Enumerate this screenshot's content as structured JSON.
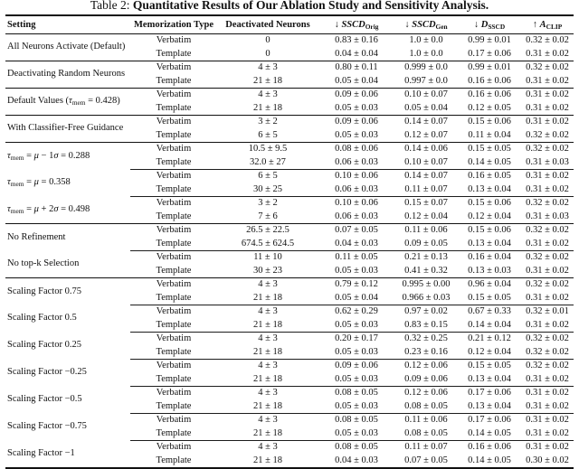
{
  "title": {
    "prefix": "Table 2: ",
    "emph": "Quantitative Results of Our Ablation Study and Sensitivity Analysis."
  },
  "table": {
    "columns": [
      {
        "key": "setting",
        "label_html": "Setting"
      },
      {
        "key": "memorization_type",
        "label_html": "Memorization Type"
      },
      {
        "key": "deactivated_neurons",
        "label_html": "Deactivated Neurons"
      },
      {
        "key": "sscd_orig",
        "label_html": "&#8595; <i>SSCD</i><sub>Orig</sub>"
      },
      {
        "key": "sscd_gen",
        "label_html": "&#8595; <i>SSCD</i><sub>Gen</sub>"
      },
      {
        "key": "d_sscd",
        "label_html": "&#8595; <i>D</i><sub>SSCD</sub>"
      },
      {
        "key": "a_clip",
        "label_html": "&#8593; <i>A</i><sub>CLIP</sub>"
      }
    ],
    "groups": [
      {
        "setting_html": "All Neurons Activate (Default)",
        "rule_after": "full",
        "rows": [
          {
            "memorization_type": "Verbatim",
            "deactivated_neurons": "0",
            "sscd_orig": "0.83 ± 0.16",
            "sscd_gen": "1.0 ± 0.0",
            "d_sscd": "0.99 ± 0.01",
            "a_clip": "0.32 ± 0.02"
          },
          {
            "memorization_type": "Template",
            "deactivated_neurons": "0",
            "sscd_orig": "0.04 ± 0.04",
            "sscd_gen": "1.0 ± 0.0",
            "d_sscd": "0.17 ± 0.06",
            "a_clip": "0.31 ± 0.02"
          }
        ]
      },
      {
        "setting_html": "Deactivating Random Neurons",
        "rule_after": "full",
        "rows": [
          {
            "memorization_type": "Verbatim",
            "deactivated_neurons": "4 ± 3",
            "sscd_orig": "0.80 ± 0.11",
            "sscd_gen": "0.999 ± 0.0",
            "d_sscd": "0.99 ± 0.01",
            "a_clip": "0.32 ± 0.02"
          },
          {
            "memorization_type": "Template",
            "deactivated_neurons": "21 ± 18",
            "sscd_orig": "0.05 ± 0.04",
            "sscd_gen": "0.997 ± 0.0",
            "d_sscd": "0.16 ± 0.06",
            "a_clip": "0.31 ± 0.02"
          }
        ]
      },
      {
        "setting_html": "Default Values (<i>&#964;</i><sub>mem</sub> = 0.428)",
        "rule_after": "full",
        "rows": [
          {
            "memorization_type": "Verbatim",
            "deactivated_neurons": "4 ± 3",
            "sscd_orig": "0.09 ± 0.06",
            "sscd_gen": "0.10 ± 0.07",
            "d_sscd": "0.16 ± 0.06",
            "a_clip": "0.31 ± 0.02"
          },
          {
            "memorization_type": "Template",
            "deactivated_neurons": "21 ± 18",
            "sscd_orig": "0.05 ± 0.03",
            "sscd_gen": "0.05 ± 0.04",
            "d_sscd": "0.12 ± 0.05",
            "a_clip": "0.31 ± 0.02"
          }
        ]
      },
      {
        "setting_html": "With Classifier-Free Guidance",
        "rule_after": "full",
        "rows": [
          {
            "memorization_type": "Verbatim",
            "deactivated_neurons": "3 ± 2",
            "sscd_orig": "0.09 ± 0.06",
            "sscd_gen": "0.14 ± 0.07",
            "d_sscd": "0.15 ± 0.06",
            "a_clip": "0.31 ± 0.02"
          },
          {
            "memorization_type": "Template",
            "deactivated_neurons": "6 ± 5",
            "sscd_orig": "0.05 ± 0.03",
            "sscd_gen": "0.12 ± 0.07",
            "d_sscd": "0.11 ± 0.04",
            "a_clip": "0.32 ± 0.02"
          }
        ]
      },
      {
        "setting_html": "<i>&#964;</i><sub>mem</sub> = <i>&#956;</i> &#8722; 1<i>&#963;</i> = 0.288",
        "rule_after": "partial",
        "rows": [
          {
            "memorization_type": "Verbatim",
            "deactivated_neurons": "10.5 ± 9.5",
            "sscd_orig": "0.08 ± 0.06",
            "sscd_gen": "0.14 ± 0.06",
            "d_sscd": "0.15 ± 0.05",
            "a_clip": "0.32 ± 0.02"
          },
          {
            "memorization_type": "Template",
            "deactivated_neurons": "32.0 ± 27",
            "sscd_orig": "0.06 ± 0.03",
            "sscd_gen": "0.10 ± 0.07",
            "d_sscd": "0.14 ± 0.05",
            "a_clip": "0.31 ± 0.03"
          }
        ]
      },
      {
        "setting_html": "<i>&#964;</i><sub>mem</sub> = <i>&#956;</i> = 0.358",
        "rule_after": "partial",
        "rows": [
          {
            "memorization_type": "Verbatim",
            "deactivated_neurons": "6 ± 5",
            "sscd_orig": "0.10 ± 0.06",
            "sscd_gen": "0.14 ± 0.07",
            "d_sscd": "0.16 ± 0.05",
            "a_clip": "0.31 ± 0.02"
          },
          {
            "memorization_type": "Template",
            "deactivated_neurons": "30 ± 25",
            "sscd_orig": "0.06 ± 0.03",
            "sscd_gen": "0.11 ± 0.07",
            "d_sscd": "0.13 ± 0.04",
            "a_clip": "0.31 ± 0.02"
          }
        ]
      },
      {
        "setting_html": "<i>&#964;</i><sub>mem</sub> = <i>&#956;</i> + 2<i>&#963;</i> = 0.498",
        "rule_after": "full",
        "rows": [
          {
            "memorization_type": "Verbatim",
            "deactivated_neurons": "3 ± 2",
            "sscd_orig": "0.10 ± 0.06",
            "sscd_gen": "0.15 ± 0.07",
            "d_sscd": "0.15 ± 0.06",
            "a_clip": "0.32 ± 0.02"
          },
          {
            "memorization_type": "Template",
            "deactivated_neurons": "7 ± 6",
            "sscd_orig": "0.06 ± 0.03",
            "sscd_gen": "0.12 ± 0.04",
            "d_sscd": "0.12 ± 0.04",
            "a_clip": "0.31 ± 0.03"
          }
        ]
      },
      {
        "setting_html": "No Refinement",
        "rule_after": "partial",
        "rows": [
          {
            "memorization_type": "Verbatim",
            "deactivated_neurons": "26.5 ± 22.5",
            "sscd_orig": "0.07 ± 0.05",
            "sscd_gen": "0.11 ± 0.06",
            "d_sscd": "0.15 ± 0.06",
            "a_clip": "0.32 ± 0.02"
          },
          {
            "memorization_type": "Template",
            "deactivated_neurons": "674.5 ± 624.5",
            "sscd_orig": "0.04 ± 0.03",
            "sscd_gen": "0.09 ± 0.05",
            "d_sscd": "0.13 ± 0.04",
            "a_clip": "0.31 ± 0.02"
          }
        ]
      },
      {
        "setting_html": "No top-k Selection",
        "rule_after": "full",
        "rows": [
          {
            "memorization_type": "Verbatim",
            "deactivated_neurons": "11 ± 10",
            "sscd_orig": "0.11 ± 0.05",
            "sscd_gen": "0.21 ± 0.13",
            "d_sscd": "0.16 ± 0.04",
            "a_clip": "0.32 ± 0.02"
          },
          {
            "memorization_type": "Template",
            "deactivated_neurons": "30 ± 23",
            "sscd_orig": "0.05 ± 0.03",
            "sscd_gen": "0.41 ± 0.32",
            "d_sscd": "0.13 ± 0.03",
            "a_clip": "0.31 ± 0.02"
          }
        ]
      },
      {
        "setting_html": "Scaling Factor 0.75",
        "rule_after": "partial",
        "rows": [
          {
            "memorization_type": "Verbatim",
            "deactivated_neurons": "4 ± 3",
            "sscd_orig": "0.79 ± 0.12",
            "sscd_gen": "0.995 ± 0.00",
            "d_sscd": "0.96 ± 0.04",
            "a_clip": "0.32 ± 0.02"
          },
          {
            "memorization_type": "Template",
            "deactivated_neurons": "21 ± 18",
            "sscd_orig": "0.05 ± 0.04",
            "sscd_gen": "0.966 ± 0.03",
            "d_sscd": "0.15 ± 0.05",
            "a_clip": "0.31 ± 0.02"
          }
        ]
      },
      {
        "setting_html": "Scaling Factor 0.5",
        "rule_after": "partial",
        "rows": [
          {
            "memorization_type": "Verbatim",
            "deactivated_neurons": "4 ± 3",
            "sscd_orig": "0.62 ± 0.29",
            "sscd_gen": "0.97 ± 0.02",
            "d_sscd": "0.67 ± 0.33",
            "a_clip": "0.32 ± 0.01"
          },
          {
            "memorization_type": "Template",
            "deactivated_neurons": "21 ± 18",
            "sscd_orig": "0.05 ± 0.03",
            "sscd_gen": "0.83 ± 0.15",
            "d_sscd": "0.14 ± 0.04",
            "a_clip": "0.31 ± 0.02"
          }
        ]
      },
      {
        "setting_html": "Scaling Factor 0.25",
        "rule_after": "partial",
        "rows": [
          {
            "memorization_type": "Verbatim",
            "deactivated_neurons": "4 ± 3",
            "sscd_orig": "0.20 ± 0.17",
            "sscd_gen": "0.32 ± 0.25",
            "d_sscd": "0.21 ± 0.12",
            "a_clip": "0.32 ± 0.02"
          },
          {
            "memorization_type": "Template",
            "deactivated_neurons": "21 ± 18",
            "sscd_orig": "0.05 ± 0.03",
            "sscd_gen": "0.23 ± 0.16",
            "d_sscd": "0.12 ± 0.04",
            "a_clip": "0.32 ± 0.02"
          }
        ]
      },
      {
        "setting_html": "Scaling Factor &#8722;0.25",
        "rule_after": "partial",
        "rows": [
          {
            "memorization_type": "Verbatim",
            "deactivated_neurons": "4 ± 3",
            "sscd_orig": "0.09 ± 0.06",
            "sscd_gen": "0.12 ± 0.06",
            "d_sscd": "0.15 ± 0.05",
            "a_clip": "0.32 ± 0.02"
          },
          {
            "memorization_type": "Template",
            "deactivated_neurons": "21 ± 18",
            "sscd_orig": "0.05 ± 0.03",
            "sscd_gen": "0.09 ± 0.06",
            "d_sscd": "0.13 ± 0.04",
            "a_clip": "0.31 ± 0.02"
          }
        ]
      },
      {
        "setting_html": "Scaling Factor &#8722;0.5",
        "rule_after": "partial",
        "rows": [
          {
            "memorization_type": "Verbatim",
            "deactivated_neurons": "4 ± 3",
            "sscd_orig": "0.08 ± 0.05",
            "sscd_gen": "0.12 ± 0.06",
            "d_sscd": "0.17 ± 0.06",
            "a_clip": "0.31 ± 0.02"
          },
          {
            "memorization_type": "Template",
            "deactivated_neurons": "21 ± 18",
            "sscd_orig": "0.05 ± 0.03",
            "sscd_gen": "0.08 ± 0.05",
            "d_sscd": "0.13 ± 0.04",
            "a_clip": "0.31 ± 0.02"
          }
        ]
      },
      {
        "setting_html": "Scaling Factor &#8722;0.75",
        "rule_after": "partial",
        "rows": [
          {
            "memorization_type": "Verbatim",
            "deactivated_neurons": "4 ± 3",
            "sscd_orig": "0.08 ± 0.05",
            "sscd_gen": "0.11 ± 0.06",
            "d_sscd": "0.17 ± 0.06",
            "a_clip": "0.31 ± 0.02"
          },
          {
            "memorization_type": "Template",
            "deactivated_neurons": "21 ± 18",
            "sscd_orig": "0.05 ± 0.03",
            "sscd_gen": "0.08 ± 0.05",
            "d_sscd": "0.14 ± 0.05",
            "a_clip": "0.31 ± 0.02"
          }
        ]
      },
      {
        "setting_html": "Scaling Factor &#8722;1",
        "rule_after": "none",
        "rows": [
          {
            "memorization_type": "Verbatim",
            "deactivated_neurons": "4 ± 3",
            "sscd_orig": "0.08 ± 0.05",
            "sscd_gen": "0.11 ± 0.07",
            "d_sscd": "0.16 ± 0.06",
            "a_clip": "0.31 ± 0.02"
          },
          {
            "memorization_type": "Template",
            "deactivated_neurons": "21 ± 18",
            "sscd_orig": "0.04 ± 0.03",
            "sscd_gen": "0.07 ± 0.05",
            "d_sscd": "0.14 ± 0.05",
            "a_clip": "0.30 ± 0.02"
          }
        ]
      }
    ]
  }
}
